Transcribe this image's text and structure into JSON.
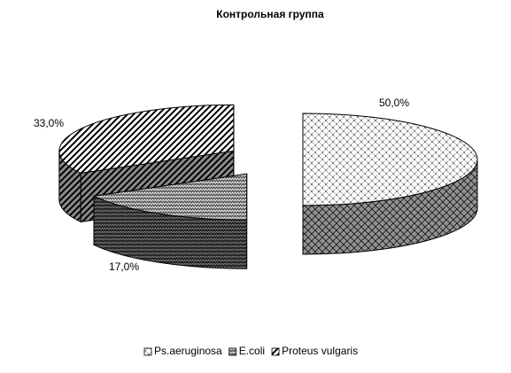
{
  "chart_data": {
    "type": "pie3d",
    "title": "Контрольная группа",
    "categories": [
      "Ps.aeruginosa",
      "E.coli",
      "Proteus vulgaris"
    ],
    "values": [
      50,
      17,
      33
    ],
    "value_labels": [
      "50,0%",
      "17,0%",
      "33,0%"
    ],
    "legend": "bottom"
  }
}
